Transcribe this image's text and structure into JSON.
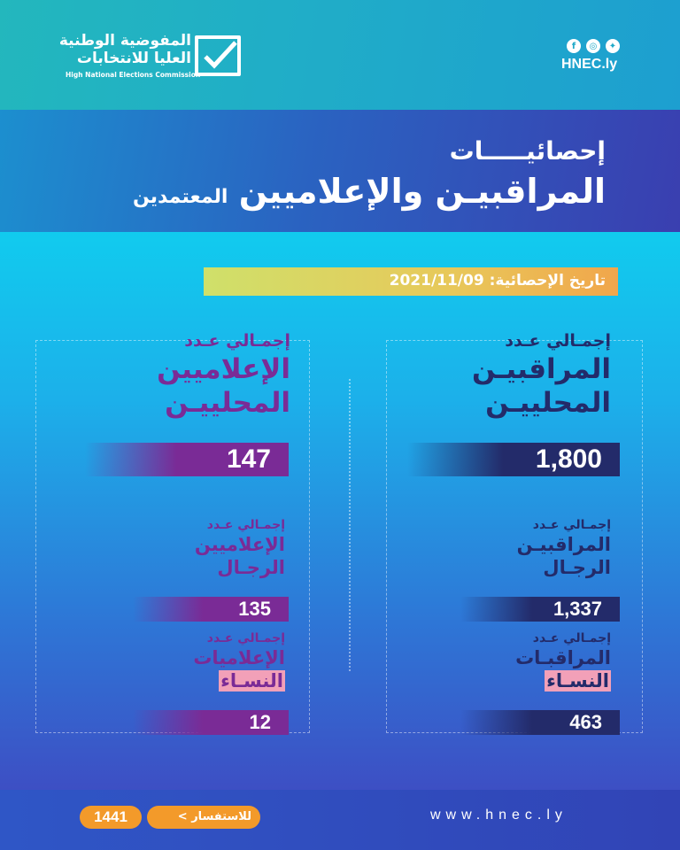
{
  "header": {
    "org_name_line1": "المفوضية الوطنية",
    "org_name_line2": "العليا للانتخابات",
    "org_name_en": "High National Elections Commission",
    "social_icons": [
      "facebook-icon",
      "instagram-icon",
      "twitter-icon"
    ],
    "handle": "HNEC.ly"
  },
  "title": {
    "line1": "إحصائيـــــات",
    "line2": "المراقبيـن والإعلاميين",
    "line3": "المعتمدين"
  },
  "date_label": "تاريخ الإحصائية: 2021/11/09",
  "observers": {
    "total": {
      "label_a": "إجمـالي عـدد",
      "label_b1": "المراقبيـن",
      "label_b2": "المحلييـن",
      "value": "1,800"
    },
    "men": {
      "label_a": "إجمـالي عـدد",
      "label_b1": "المراقبيـن",
      "label_b2": "الرجـال",
      "value": "1,337"
    },
    "women": {
      "label_a": "إجمـالي عـدد",
      "label_b1": "المراقبـات",
      "label_b2": "النسـاء",
      "value": "463"
    }
  },
  "media": {
    "total": {
      "label_a": "إجمـالي عـدد",
      "label_b1": "الإعلاميين",
      "label_b2": "المحلييـن",
      "value": "147"
    },
    "men": {
      "label_a": "إجمـالي عـدد",
      "label_b1": "الإعلاميين",
      "label_b2": "الرجـال",
      "value": "135"
    },
    "women": {
      "label_a": "إجمـالي عـدد",
      "label_b1": "الإعلاميات",
      "label_b2": "النسـاء",
      "value": "12"
    }
  },
  "footer": {
    "hotline": "1441",
    "inquiry_label": "للاستفسار >",
    "website": "www.hnec.ly"
  },
  "colors": {
    "navy": "#232b6a",
    "purple": "#7a2b96",
    "orange": "#f39a2a"
  }
}
